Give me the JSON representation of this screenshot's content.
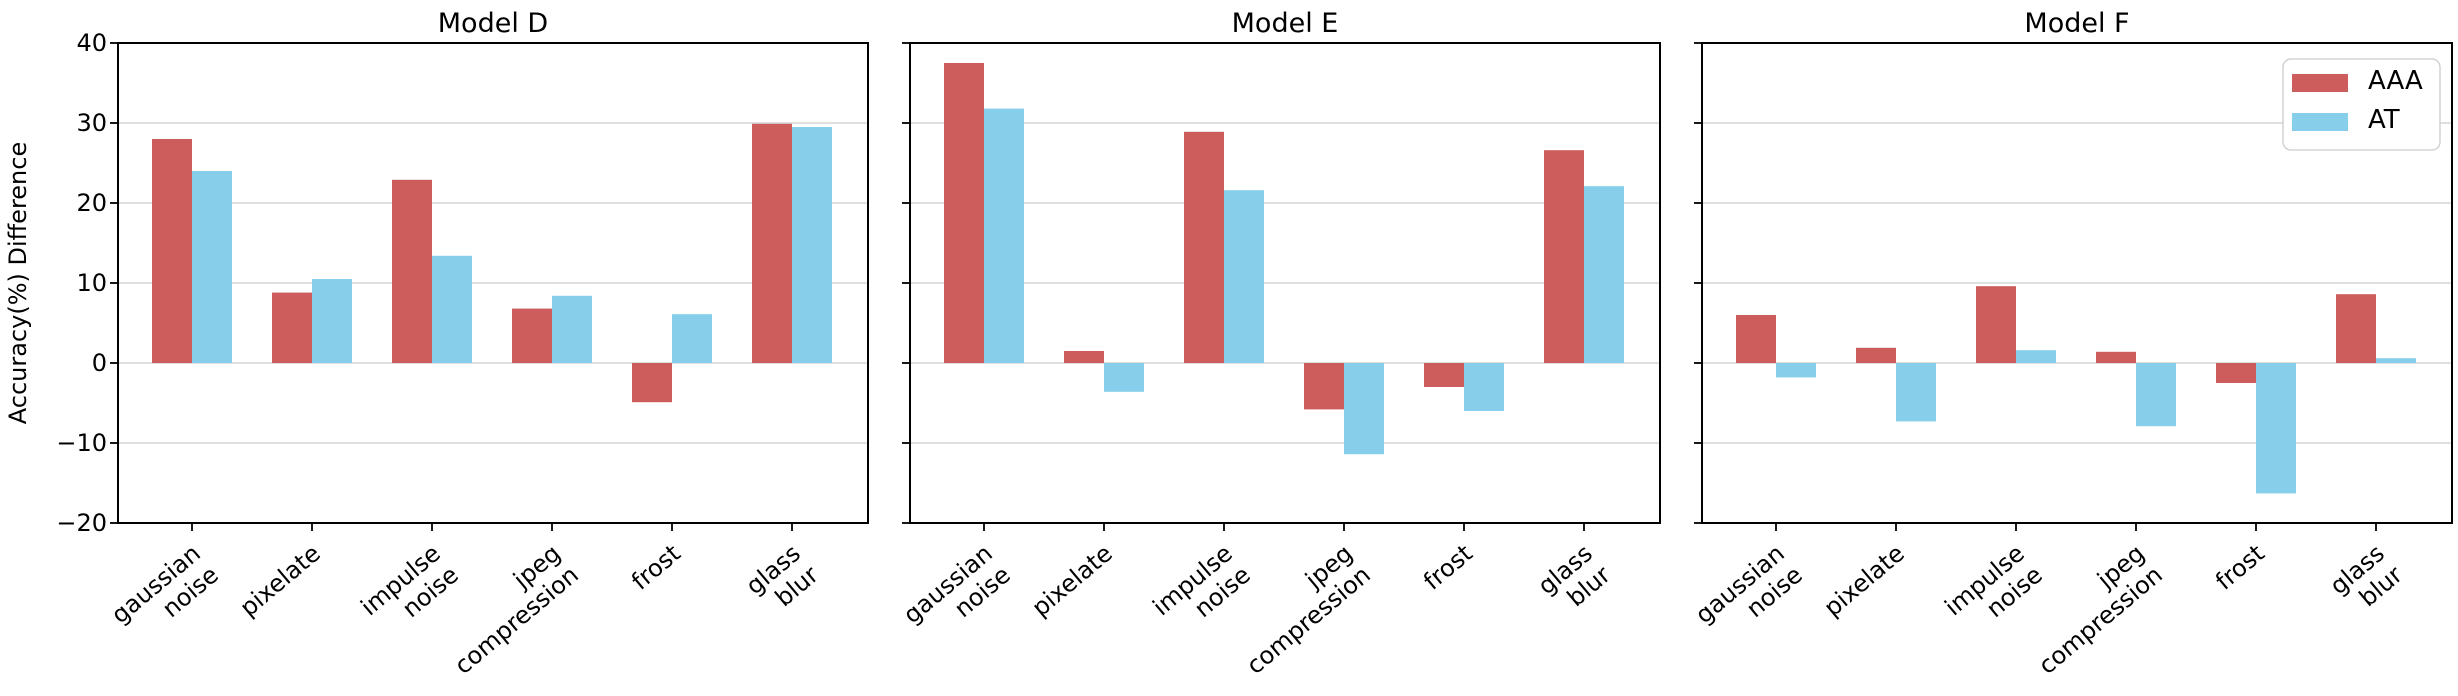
{
  "axes": {
    "ylabel": "Accuracy(%) Difference",
    "ylim": [
      -20,
      40
    ],
    "yticks": [
      -20,
      -10,
      0,
      10,
      20,
      30,
      40
    ],
    "ytick_labels": [
      "−20",
      "−10",
      "0",
      "10",
      "20",
      "30",
      "40"
    ],
    "gridline_values": [
      30,
      20,
      10,
      0,
      -10
    ],
    "grid": true
  },
  "legend": {
    "position": "top-right",
    "entries": [
      {
        "label": "AAA",
        "color": "#CD5C5C"
      },
      {
        "label": "AT",
        "color": "#87CEEB"
      }
    ]
  },
  "colors": {
    "aaa_bar": "#CD5C5C",
    "at_bar": "#87CEEB",
    "gridline": "#CCCCCC",
    "spine": "#000000",
    "background": "#FFFFFF",
    "text": "#000000",
    "legend_border": "#CCCCCC"
  },
  "chart_data": [
    {
      "type": "bar",
      "title": "Model D",
      "categories": [
        "gaussian\nnoise",
        "pixelate",
        "impulse\nnoise",
        "jpeg\ncompression",
        "frost",
        "glass\nblur"
      ],
      "series": [
        {
          "name": "AAA",
          "color": "#CD5C5C",
          "values": [
            28.0,
            8.8,
            22.9,
            6.8,
            -4.9,
            29.9
          ]
        },
        {
          "name": "AT",
          "color": "#87CEEB",
          "values": [
            24.0,
            10.5,
            13.4,
            8.4,
            6.1,
            29.5
          ]
        }
      ],
      "ylim": [
        -20,
        40
      ],
      "grid": true
    },
    {
      "type": "bar",
      "title": "Model E",
      "categories": [
        "gaussian\nnoise",
        "pixelate",
        "impulse\nnoise",
        "jpeg\ncompression",
        "frost",
        "glass\nblur"
      ],
      "series": [
        {
          "name": "AAA",
          "color": "#CD5C5C",
          "values": [
            37.5,
            1.5,
            28.9,
            -5.8,
            -3.0,
            26.6
          ]
        },
        {
          "name": "AT",
          "color": "#87CEEB",
          "values": [
            31.8,
            -3.6,
            21.6,
            -11.4,
            -6.0,
            22.1
          ]
        }
      ],
      "ylim": [
        -20,
        40
      ],
      "grid": true
    },
    {
      "type": "bar",
      "title": "Model F",
      "categories": [
        "gaussian\nnoise",
        "pixelate",
        "impulse\nnoise",
        "jpeg\ncompression",
        "frost",
        "glass\nblur"
      ],
      "series": [
        {
          "name": "AAA",
          "color": "#CD5C5C",
          "values": [
            6.0,
            1.9,
            9.6,
            1.4,
            -2.5,
            8.6
          ]
        },
        {
          "name": "AT",
          "color": "#87CEEB",
          "values": [
            -1.8,
            -7.3,
            1.6,
            -7.9,
            -16.3,
            0.6
          ]
        }
      ],
      "ylim": [
        -20,
        40
      ],
      "grid": true
    }
  ]
}
